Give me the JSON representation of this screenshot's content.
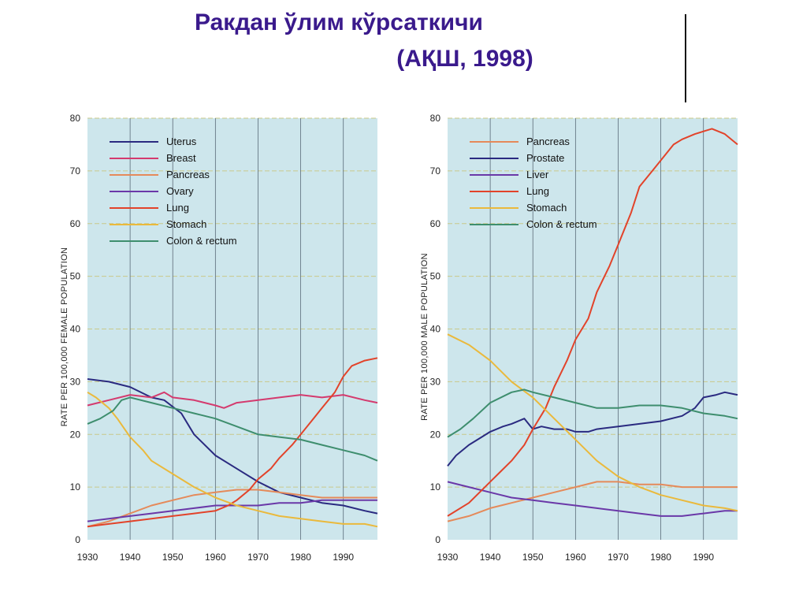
{
  "page": {
    "title_line1": "Ракдан ўлим кўрсаткичи",
    "title_line2": "(АҚШ, 1998)"
  },
  "chart_data": [
    {
      "type": "line",
      "xlabel": "",
      "ylabel": "RATE PER 100,000 FEMALE POPULATION",
      "xlim": [
        1930,
        1998
      ],
      "ylim": [
        0,
        80
      ],
      "x_ticks": [
        1930,
        1940,
        1950,
        1960,
        1970,
        1980,
        1990
      ],
      "y_ticks": [
        0,
        10,
        20,
        30,
        40,
        50,
        60,
        70,
        80
      ],
      "grid": true,
      "legend_position": "top-left",
      "background": "#cde6ec",
      "series": [
        {
          "name": "Uterus",
          "color": "#2a2a80",
          "x": [
            1930,
            1935,
            1940,
            1945,
            1948,
            1952,
            1955,
            1960,
            1965,
            1970,
            1975,
            1980,
            1985,
            1990,
            1995,
            1998
          ],
          "values": [
            30.5,
            30,
            29,
            27,
            26.5,
            24,
            20,
            16,
            13.5,
            11,
            9,
            8,
            7,
            6.5,
            5.5,
            5
          ]
        },
        {
          "name": "Breast",
          "color": "#d43a6e",
          "x": [
            1930,
            1935,
            1940,
            1945,
            1948,
            1950,
            1955,
            1960,
            1962,
            1965,
            1970,
            1975,
            1980,
            1985,
            1990,
            1995,
            1998
          ],
          "values": [
            25.5,
            26.5,
            27.5,
            27,
            28,
            27,
            26.5,
            25.5,
            25,
            26,
            26.5,
            27,
            27.5,
            27,
            27.5,
            26.5,
            26
          ]
        },
        {
          "name": "Pancreas",
          "color": "#e58a5a",
          "x": [
            1930,
            1935,
            1940,
            1945,
            1950,
            1955,
            1960,
            1965,
            1970,
            1975,
            1980,
            1985,
            1990,
            1995,
            1998
          ],
          "values": [
            2.5,
            3.5,
            5,
            6.5,
            7.5,
            8.5,
            9,
            9.5,
            9.5,
            9,
            8.5,
            8,
            8,
            8,
            8
          ]
        },
        {
          "name": "Ovary",
          "color": "#6a38a8",
          "x": [
            1930,
            1935,
            1940,
            1945,
            1950,
            1955,
            1960,
            1965,
            1970,
            1975,
            1980,
            1985,
            1990,
            1995,
            1998
          ],
          "values": [
            3.5,
            4,
            4.5,
            5,
            5.5,
            6,
            6.5,
            6.5,
            6.5,
            7,
            7,
            7.5,
            7.5,
            7.5,
            7.5
          ]
        },
        {
          "name": "Lung",
          "color": "#e2432a",
          "x": [
            1930,
            1935,
            1940,
            1945,
            1950,
            1955,
            1960,
            1963,
            1965,
            1968,
            1970,
            1973,
            1975,
            1978,
            1980,
            1983,
            1985,
            1988,
            1990,
            1992,
            1995,
            1998
          ],
          "values": [
            2.5,
            3,
            3.5,
            4,
            4.5,
            5,
            5.5,
            6.5,
            7.5,
            9.5,
            11.5,
            13.5,
            15.5,
            18,
            20,
            23,
            25,
            28,
            31,
            33,
            34,
            34.5
          ]
        },
        {
          "name": "Stomach",
          "color": "#eab93c",
          "x": [
            1930,
            1932,
            1935,
            1937,
            1940,
            1943,
            1945,
            1950,
            1955,
            1960,
            1965,
            1970,
            1975,
            1980,
            1985,
            1990,
            1995,
            1998
          ],
          "values": [
            28,
            27,
            25,
            23,
            19.5,
            17,
            15,
            12.5,
            10,
            8,
            6.5,
            5.5,
            4.5,
            4,
            3.5,
            3,
            3,
            2.5
          ]
        },
        {
          "name": "Colon & rectum",
          "color": "#3e8e6e",
          "x": [
            1930,
            1933,
            1936,
            1938,
            1940,
            1945,
            1950,
            1955,
            1960,
            1965,
            1970,
            1975,
            1980,
            1985,
            1990,
            1995,
            1998
          ],
          "values": [
            22,
            23,
            24.5,
            26.5,
            27,
            26,
            25,
            24,
            23,
            21.5,
            20,
            19.5,
            19,
            18,
            17,
            16,
            15
          ]
        }
      ]
    },
    {
      "type": "line",
      "xlabel": "",
      "ylabel": "RATE PER 100,000 MALE POPULATION",
      "xlim": [
        1930,
        1998
      ],
      "ylim": [
        0,
        80
      ],
      "x_ticks": [
        1930,
        1940,
        1950,
        1960,
        1970,
        1980,
        1990
      ],
      "y_ticks": [
        0,
        10,
        20,
        30,
        40,
        50,
        60,
        70,
        80
      ],
      "grid": true,
      "legend_position": "top-left",
      "background": "#cde6ec",
      "series": [
        {
          "name": "Pancreas",
          "color": "#e58a5a",
          "x": [
            1930,
            1935,
            1940,
            1945,
            1950,
            1955,
            1960,
            1965,
            1970,
            1975,
            1980,
            1985,
            1990,
            1995,
            1998
          ],
          "values": [
            3.5,
            4.5,
            6,
            7,
            8,
            9,
            10,
            11,
            11,
            10.5,
            10.5,
            10,
            10,
            10,
            10
          ]
        },
        {
          "name": "Prostate",
          "color": "#2a2a80",
          "x": [
            1930,
            1932,
            1935,
            1938,
            1940,
            1943,
            1945,
            1948,
            1950,
            1952,
            1955,
            1958,
            1960,
            1963,
            1965,
            1970,
            1975,
            1980,
            1985,
            1988,
            1990,
            1993,
            1995,
            1998
          ],
          "values": [
            14,
            16,
            18,
            19.5,
            20.5,
            21.5,
            22,
            23,
            21,
            21.5,
            21,
            21,
            20.5,
            20.5,
            21,
            21.5,
            22,
            22.5,
            23.5,
            25,
            27,
            27.5,
            28,
            27.5
          ]
        },
        {
          "name": "Liver",
          "color": "#6a38a8",
          "x": [
            1930,
            1935,
            1940,
            1945,
            1950,
            1955,
            1960,
            1965,
            1970,
            1975,
            1980,
            1985,
            1990,
            1995,
            1998
          ],
          "values": [
            11,
            10,
            9,
            8,
            7.5,
            7,
            6.5,
            6,
            5.5,
            5,
            4.5,
            4.5,
            5,
            5.5,
            5.5
          ]
        },
        {
          "name": "Lung",
          "color": "#e2432a",
          "x": [
            1930,
            1935,
            1940,
            1945,
            1948,
            1950,
            1953,
            1955,
            1958,
            1960,
            1963,
            1965,
            1968,
            1970,
            1973,
            1975,
            1978,
            1980,
            1983,
            1985,
            1988,
            1990,
            1992,
            1995,
            1998
          ],
          "values": [
            4.5,
            7,
            11,
            15,
            18,
            21,
            25,
            29,
            34,
            38,
            42,
            47,
            52,
            56,
            62,
            67,
            70,
            72,
            75,
            76,
            77,
            77.5,
            78,
            77,
            75
          ]
        },
        {
          "name": "Stomach",
          "color": "#eab93c",
          "x": [
            1930,
            1935,
            1940,
            1945,
            1950,
            1955,
            1960,
            1965,
            1970,
            1975,
            1980,
            1985,
            1990,
            1995,
            1998
          ],
          "values": [
            39,
            37,
            34,
            30,
            27,
            23,
            19,
            15,
            12,
            10,
            8.5,
            7.5,
            6.5,
            6,
            5.5
          ]
        },
        {
          "name": "Colon & rectum",
          "color": "#3e8e6e",
          "x": [
            1930,
            1933,
            1936,
            1940,
            1945,
            1948,
            1950,
            1955,
            1960,
            1965,
            1970,
            1975,
            1980,
            1985,
            1990,
            1995,
            1998
          ],
          "values": [
            19.5,
            21,
            23,
            26,
            28,
            28.5,
            28,
            27,
            26,
            25,
            25,
            25.5,
            25.5,
            25,
            24,
            23.5,
            23
          ]
        }
      ]
    }
  ]
}
